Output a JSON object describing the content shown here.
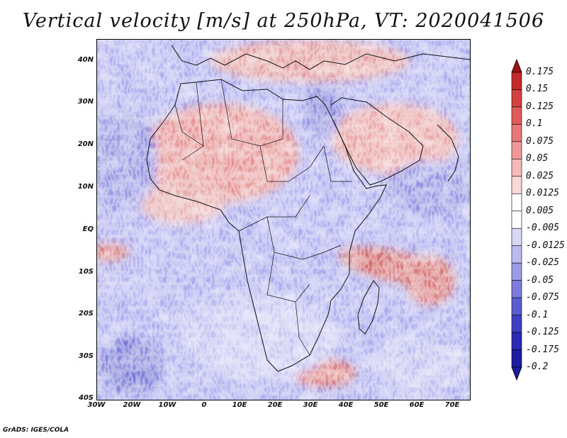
{
  "title": "Vertical velocity [m/s] at 250hPa, VT: 2020041506",
  "credit": "GrADS: IGES/COLA",
  "map": {
    "region": "Africa",
    "lat_range": [
      -40,
      45
    ],
    "lon_range": [
      -30,
      75
    ],
    "lat_ticks": [
      "40N",
      "30N",
      "20N",
      "10N",
      "EQ",
      "10S",
      "20S",
      "30S",
      "40S"
    ],
    "lon_ticks": [
      "30W",
      "20W",
      "10W",
      "0",
      "10E",
      "20E",
      "30E",
      "40E",
      "50E",
      "60E",
      "70E"
    ]
  },
  "colorbar": {
    "labels": [
      "0.175",
      "0.15",
      "0.125",
      "0.1",
      "0.075",
      "0.05",
      "0.025",
      "0.0125",
      "0.005",
      "-0.005",
      "-0.0125",
      "-0.025",
      "-0.05",
      "-0.075",
      "-0.1",
      "-0.125",
      "-0.175",
      "-0.2"
    ],
    "colors": [
      "#b01818",
      "#c42a2a",
      "#d44040",
      "#e05a5a",
      "#e87878",
      "#f09898",
      "#f6baba",
      "#fad8d8",
      "#ffffff",
      "#ffffff",
      "#d8d8f6",
      "#bbbbef",
      "#9c9ce6",
      "#7c7cdc",
      "#5c5cd2",
      "#3f3fc6",
      "#2a2ab6",
      "#1c1ca0",
      "#10108a"
    ],
    "top_arrow_color": "#a01010",
    "bottom_arrow_color": "#1a1a9a"
  }
}
